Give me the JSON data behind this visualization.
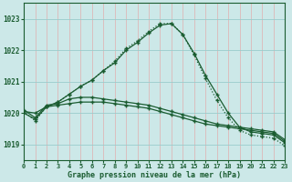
{
  "title": "Graphe pression niveau de la mer (hPa)",
  "bg_color": "#cce8e8",
  "plot_bg_color": "#cce8e8",
  "line_color": "#1a5c30",
  "xlabel": "Graphe pression niveau de la mer (hPa)",
  "xlim": [
    0,
    23
  ],
  "ylim": [
    1018.5,
    1023.5
  ],
  "yticks": [
    1019,
    1020,
    1021,
    1022,
    1023
  ],
  "xticks": [
    0,
    1,
    2,
    3,
    4,
    5,
    6,
    7,
    8,
    9,
    10,
    11,
    12,
    13,
    14,
    15,
    16,
    17,
    18,
    19,
    20,
    21,
    22,
    23
  ],
  "series_main": [
    1020.0,
    1019.8,
    1020.2,
    1020.35,
    1020.6,
    1020.85,
    1021.05,
    1021.35,
    1021.6,
    1022.0,
    1022.25,
    1022.55,
    1022.8,
    1022.85,
    1022.5,
    1021.9,
    1021.2,
    1020.6,
    1020.0,
    1019.55,
    1019.4,
    1019.35,
    1019.3,
    1019.05
  ],
  "series_flat1": [
    1020.05,
    1020.0,
    1020.2,
    1020.25,
    1020.3,
    1020.35,
    1020.35,
    1020.35,
    1020.3,
    1020.25,
    1020.2,
    1020.15,
    1020.05,
    1019.95,
    1019.85,
    1019.75,
    1019.65,
    1019.6,
    1019.55,
    1019.5,
    1019.45,
    1019.4,
    1019.35,
    1019.1
  ],
  "series_flat2": [
    1020.1,
    1019.85,
    1020.25,
    1020.3,
    1020.45,
    1020.5,
    1020.5,
    1020.45,
    1020.4,
    1020.35,
    1020.3,
    1020.25,
    1020.15,
    1020.05,
    1019.95,
    1019.85,
    1019.75,
    1019.65,
    1019.6,
    1019.55,
    1019.5,
    1019.45,
    1019.4,
    1019.15
  ],
  "series_dotted": [
    1020.05,
    1019.75,
    1020.2,
    1020.35,
    1020.6,
    1020.85,
    1021.05,
    1021.35,
    1021.65,
    1022.05,
    1022.3,
    1022.6,
    1022.85,
    1022.85,
    1022.5,
    1021.85,
    1021.1,
    1020.4,
    1019.85,
    1019.45,
    1019.3,
    1019.25,
    1019.2,
    1018.95
  ],
  "vgrid_color": "#ddb8b8",
  "hgrid_color": "#99cccc"
}
